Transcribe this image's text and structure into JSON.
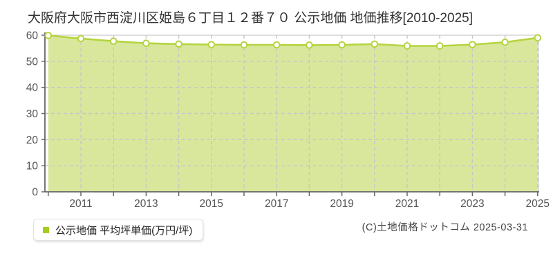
{
  "copyright": "(C)土地価格ドットコム 2025-03-31",
  "chart_data": {
    "type": "area",
    "title": "大阪府大阪市西淀川区姫島６丁目１２番７０ 公示地価 地価推移[2010-2025]",
    "series_name": "公示地価 平均坪単価(万円/坪)",
    "x": [
      2010,
      2011,
      2012,
      2013,
      2014,
      2015,
      2016,
      2017,
      2018,
      2019,
      2020,
      2021,
      2022,
      2023,
      2024,
      2025
    ],
    "values": [
      59.9,
      58.7,
      57.7,
      56.9,
      56.6,
      56.4,
      56.3,
      56.3,
      56.2,
      56.3,
      56.6,
      55.9,
      55.9,
      56.4,
      57.3,
      59.0
    ],
    "ylabel": "",
    "xlabel": "",
    "ylim": [
      0,
      60
    ],
    "ytick_step": 10,
    "ytick_labels": [
      "0",
      "10",
      "20",
      "30",
      "40",
      "50",
      "60"
    ],
    "xtick_label_years": [
      2011,
      2013,
      2015,
      2017,
      2019,
      2021,
      2023,
      2025
    ],
    "grid": true,
    "legend_position": "bottom-left",
    "colors": {
      "line": "#b4d43e",
      "fill": "#d9e79c",
      "marker_fill": "#ffffff",
      "legend_marker": "#a6cc22",
      "grid": "#c6c6c6",
      "border": "#cccccc",
      "axis": "#666666",
      "tick_text": "#555555",
      "title_text": "#333333"
    }
  }
}
